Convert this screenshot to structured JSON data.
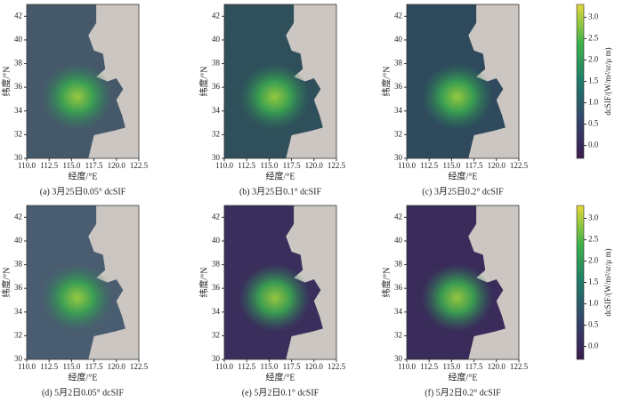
{
  "chart_data": [
    {
      "type": "heatmap",
      "caption": "(a) 3月25日0.05° dcSIF",
      "xlabel": "经度/°E",
      "ylabel": "纬度/°N",
      "xlim": [
        110,
        122.5
      ],
      "ylim": [
        30,
        43
      ],
      "xticks": [
        {
          "value": 110,
          "label": "110.0"
        },
        {
          "value": 112.5,
          "label": "112.5"
        },
        {
          "value": 115,
          "label": "115.0"
        },
        {
          "value": 117.5,
          "label": "117.5"
        },
        {
          "value": 120,
          "label": "120.0"
        },
        {
          "value": 122.5,
          "label": "122.5"
        }
      ],
      "yticks": [
        30,
        32,
        34,
        36,
        38,
        40,
        42
      ]
    },
    {
      "type": "heatmap",
      "caption": "(b) 3月25日0.1° dcSIF",
      "xlabel": "经度/°E",
      "ylabel": "纬度/°N",
      "xlim": [
        110,
        122.5
      ],
      "ylim": [
        30,
        43
      ],
      "xticks": [
        {
          "value": 110,
          "label": "110.0"
        },
        {
          "value": 112.5,
          "label": "112.5"
        },
        {
          "value": 115,
          "label": "115.0"
        },
        {
          "value": 117.5,
          "label": "117.5"
        },
        {
          "value": 120,
          "label": "120.0"
        },
        {
          "value": 122.5,
          "label": "122.5"
        }
      ],
      "yticks": [
        30,
        32,
        34,
        36,
        38,
        40,
        42
      ]
    },
    {
      "type": "heatmap",
      "caption": "(c) 3月25日0.2° dcSIF",
      "xlabel": "经度/°E",
      "ylabel": "纬度/°N",
      "xlim": [
        110,
        122.5
      ],
      "ylim": [
        30,
        43
      ],
      "xticks": [
        {
          "value": 110,
          "label": "110.0"
        },
        {
          "value": 112.5,
          "label": "112.5"
        },
        {
          "value": 115,
          "label": "115.0"
        },
        {
          "value": 117.5,
          "label": "117.5"
        },
        {
          "value": 120,
          "label": "120.0"
        },
        {
          "value": 122.5,
          "label": "122.5"
        }
      ],
      "yticks": [
        30,
        32,
        34,
        36,
        38,
        40,
        42
      ],
      "colorbar": {
        "label": "dcSIF/(W/m²/sr/μ m)",
        "clim": [
          -0.3,
          3.3
        ],
        "ticks": [
          {
            "value": 0,
            "label": "0.0"
          },
          {
            "value": 0.5,
            "label": "0.5"
          },
          {
            "value": 1,
            "label": "1.0"
          },
          {
            "value": 1.5,
            "label": "1.5"
          },
          {
            "value": 2,
            "label": "2.0"
          },
          {
            "value": 2.5,
            "label": "2.5"
          },
          {
            "value": 3,
            "label": "3.0"
          }
        ]
      }
    },
    {
      "type": "heatmap",
      "caption": "(d) 5月2日0.05° dcSIF",
      "xlabel": "经度/°E",
      "ylabel": "纬度/°N",
      "xlim": [
        110,
        122.5
      ],
      "ylim": [
        30,
        43
      ],
      "xticks": [
        {
          "value": 110,
          "label": "110.0"
        },
        {
          "value": 112.5,
          "label": "112.5"
        },
        {
          "value": 115,
          "label": "115.0"
        },
        {
          "value": 117.5,
          "label": "117.5"
        },
        {
          "value": 120,
          "label": "120.0"
        },
        {
          "value": 122.5,
          "label": "122.5"
        }
      ],
      "yticks": [
        30,
        32,
        34,
        36,
        38,
        40,
        42
      ]
    },
    {
      "type": "heatmap",
      "caption": "(e) 5月2日0.1° dcSIF",
      "xlabel": "经度/°E",
      "ylabel": "纬度/°N",
      "xlim": [
        110,
        122.5
      ],
      "ylim": [
        30,
        43
      ],
      "xticks": [
        {
          "value": 110,
          "label": "110.0"
        },
        {
          "value": 112.5,
          "label": "112.5"
        },
        {
          "value": 115,
          "label": "115.0"
        },
        {
          "value": 117.5,
          "label": "117.5"
        },
        {
          "value": 120,
          "label": "120.0"
        },
        {
          "value": 122.5,
          "label": "122.5"
        }
      ],
      "yticks": [
        30,
        32,
        34,
        36,
        38,
        40,
        42
      ]
    },
    {
      "type": "heatmap",
      "caption": "(f) 5月2日0.2° dcSIF",
      "xlabel": "经度/°E",
      "ylabel": "纬度/°N",
      "xlim": [
        110,
        122.5
      ],
      "ylim": [
        30,
        43
      ],
      "xticks": [
        {
          "value": 110,
          "label": "110.0"
        },
        {
          "value": 112.5,
          "label": "112.5"
        },
        {
          "value": 115,
          "label": "115.0"
        },
        {
          "value": 117.5,
          "label": "117.5"
        },
        {
          "value": 120,
          "label": "120.0"
        },
        {
          "value": 122.5,
          "label": "122.5"
        }
      ],
      "yticks": [
        30,
        32,
        34,
        36,
        38,
        40,
        42
      ],
      "colorbar": {
        "label": "dcSIF/(W/m²/sr/μ m)",
        "clim": [
          -0.3,
          3.3
        ],
        "ticks": [
          {
            "value": 0,
            "label": "0.0"
          },
          {
            "value": 0.5,
            "label": "0.5"
          },
          {
            "value": 1,
            "label": "1.0"
          },
          {
            "value": 1.5,
            "label": "1.5"
          },
          {
            "value": 2,
            "label": "2.0"
          },
          {
            "value": 2.5,
            "label": "2.5"
          },
          {
            "value": 3,
            "label": "3.0"
          }
        ]
      }
    }
  ]
}
